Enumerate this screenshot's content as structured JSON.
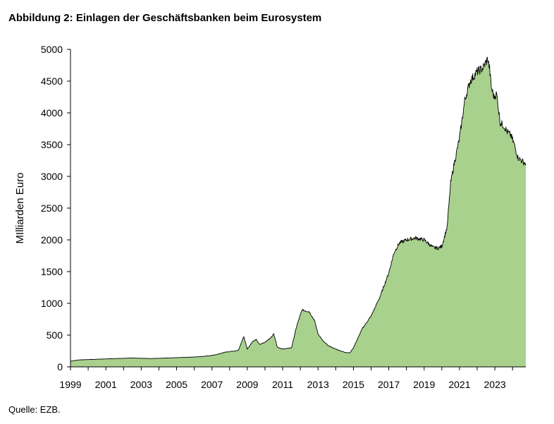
{
  "header": {
    "title": "Abbildung 2: Einlagen der Geschäftsbanken beim Eurosystem"
  },
  "footer": {
    "source": "Quelle: EZB."
  },
  "chart_data": {
    "type": "area",
    "title": "Abbildung 2: Einlagen der Geschäftsbanken beim Eurosystem",
    "xlabel": "",
    "ylabel": "MIlliarden Euro",
    "xlim": [
      1999,
      2024.75
    ],
    "ylim": [
      0,
      5000
    ],
    "yticks": [
      0,
      500,
      1000,
      1500,
      2000,
      2500,
      3000,
      3500,
      4000,
      4500,
      5000
    ],
    "xticks": [
      1999,
      2001,
      2003,
      2005,
      2007,
      2009,
      2011,
      2013,
      2015,
      2017,
      2019,
      2021,
      2023
    ],
    "legend": "none",
    "grid": false,
    "fill_color": "#a9d18e",
    "line_color": "#000000",
    "series": [
      {
        "name": "Einlagen der Geschäftsbanken beim Eurosystem",
        "x": [
          1999.0,
          1999.5,
          2000.0,
          2000.5,
          2001.0,
          2001.5,
          2002.0,
          2002.5,
          2003.0,
          2003.5,
          2004.0,
          2004.5,
          2005.0,
          2005.5,
          2006.0,
          2006.5,
          2007.0,
          2007.5,
          2007.7,
          2008.0,
          2008.5,
          2008.8,
          2009.0,
          2009.3,
          2009.5,
          2009.7,
          2010.0,
          2010.3,
          2010.5,
          2010.7,
          2011.0,
          2011.5,
          2011.8,
          2012.1,
          2012.3,
          2012.5,
          2012.8,
          2013.0,
          2013.3,
          2013.6,
          2014.0,
          2014.5,
          2014.8,
          2015.0,
          2015.5,
          2016.0,
          2016.5,
          2017.0,
          2017.3,
          2017.6,
          2018.0,
          2018.5,
          2019.0,
          2019.5,
          2019.8,
          2020.0,
          2020.3,
          2020.5,
          2020.7,
          2021.0,
          2021.3,
          2021.6,
          2022.0,
          2022.3,
          2022.6,
          2022.7,
          2022.8,
          2022.95,
          2023.1,
          2023.3,
          2023.5,
          2023.7,
          2023.9,
          2024.1,
          2024.3,
          2024.5,
          2024.75
        ],
        "values": [
          90,
          110,
          115,
          120,
          125,
          130,
          135,
          140,
          135,
          130,
          135,
          140,
          145,
          150,
          155,
          165,
          180,
          210,
          230,
          240,
          260,
          480,
          280,
          400,
          430,
          350,
          390,
          450,
          520,
          310,
          280,
          300,
          650,
          900,
          880,
          870,
          730,
          520,
          400,
          330,
          280,
          230,
          220,
          300,
          600,
          800,
          1100,
          1480,
          1800,
          1950,
          2000,
          2030,
          2000,
          1880,
          1870,
          1900,
          2200,
          2900,
          3200,
          3600,
          4200,
          4500,
          4650,
          4700,
          4850,
          4700,
          4400,
          4250,
          4300,
          3850,
          3800,
          3700,
          3650,
          3500,
          3300,
          3250,
          3200
        ]
      }
    ]
  }
}
